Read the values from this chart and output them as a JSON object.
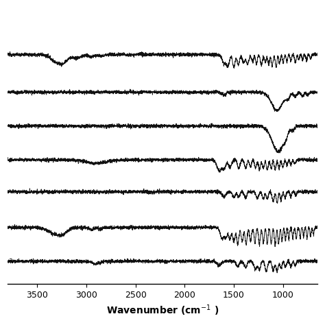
{
  "xlabel": "Wavenumber (cm⁻¹ )",
  "xmin": 650,
  "xmax": 3800,
  "xticks": [
    3500,
    3000,
    2500,
    2000,
    1500,
    1000
  ],
  "num_spectra": 7,
  "offsets": [
    1.1,
    0.9,
    0.72,
    0.54,
    0.37,
    0.18,
    0.0
  ],
  "background_color": "#ffffff",
  "line_color": "#111111",
  "line_width": 0.7,
  "noise_level": 0.003
}
